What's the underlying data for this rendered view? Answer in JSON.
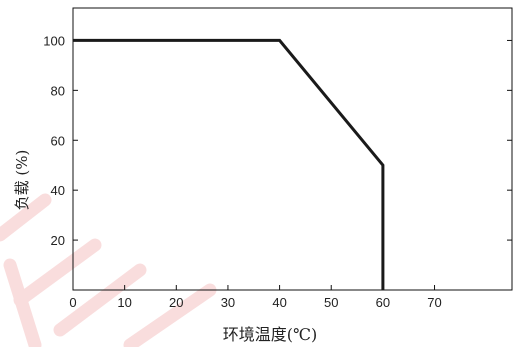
{
  "chart_data": {
    "type": "line",
    "title": "",
    "xlabel": "环境温度(℃)",
    "ylabel": "负载 (%)",
    "xlim": [
      0,
      85
    ],
    "ylim": [
      0,
      113
    ],
    "x_ticks": [
      0,
      10,
      20,
      30,
      40,
      50,
      60,
      70
    ],
    "y_ticks": [
      20,
      40,
      60,
      80,
      100
    ],
    "x_tick_labels": [
      "0",
      "10",
      "20",
      "30",
      "40",
      "50",
      "60",
      "70"
    ],
    "y_tick_labels": [
      "20",
      "40",
      "60",
      "80",
      "100"
    ],
    "grid": false,
    "series": [
      {
        "x": [
          0,
          40,
          60,
          60
        ],
        "y": [
          100,
          100,
          50,
          0
        ],
        "color": "#1a1a1a"
      }
    ]
  }
}
